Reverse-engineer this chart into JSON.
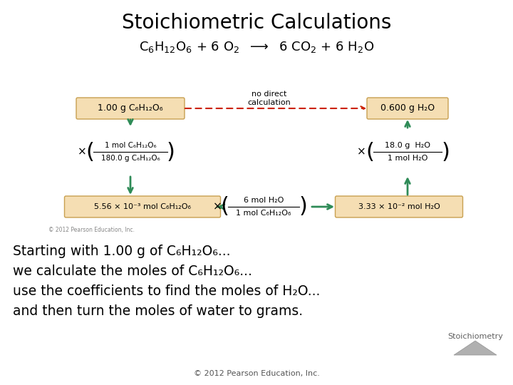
{
  "title": "Stoichiometric Calculations",
  "bg_color": "#ffffff",
  "box_bg": "#f5deb3",
  "box_border": "#c8a050",
  "green": "#2e8b57",
  "red": "#cc2200",
  "box1_text": "1.00 g C₆H₁₂O₆",
  "box2_text": "0.600 g H₂O",
  "box3_text": "5.56 × 10⁻³ mol C₆H₁₂O₆",
  "box4_text": "3.33 × 10⁻² mol H₂O",
  "frac1_num": "1 mol C₆H₁₂O₆",
  "frac1_den": "180.0 g C₆H₁₂O₆",
  "frac2_num": "18.0 g  H₂O",
  "frac2_den": "1 mol H₂O",
  "frac3_num": "6 mol H₂O",
  "frac3_den": "1 mol C₆H₁₂O₆",
  "no_direct": "no direct\ncalculation",
  "bottom_text1": "Starting with 1.00 g of C₆H₁₂O₆...",
  "bottom_text2": "we calculate the moles of C₆H₁₂O₆...",
  "bottom_text3": "use the coefficients to find the moles of H₂O...",
  "bottom_text4": "and then turn the moles of water to grams.",
  "footer": "© 2012 Pearson Education, Inc.",
  "stoich_label": "Stoichiometry",
  "copyright_diag": "© 2012 Pearson Education, Inc."
}
